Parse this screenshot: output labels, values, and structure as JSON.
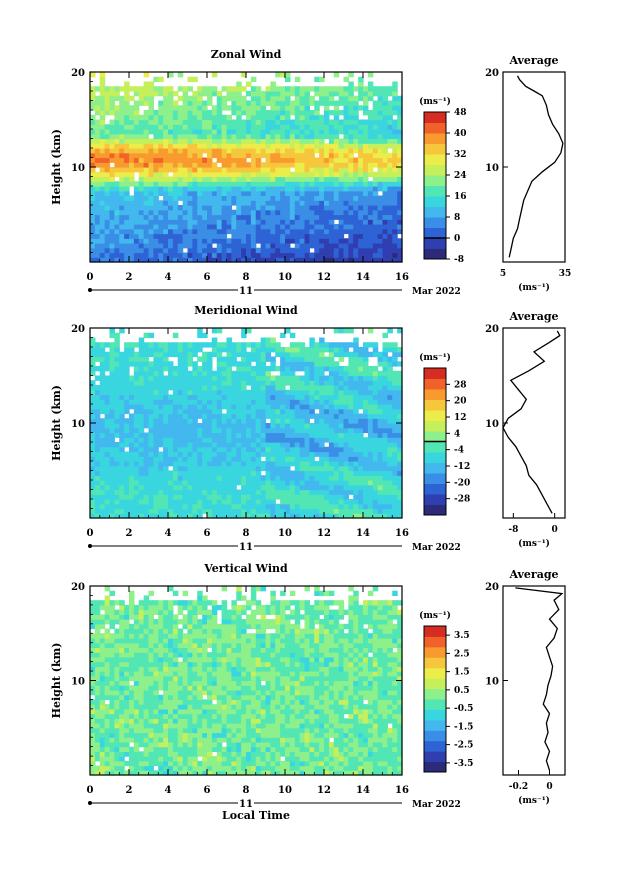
{
  "colormap": [
    "#2b2b7a",
    "#2f3fb0",
    "#2e63d6",
    "#3b8ee6",
    "#43b8ee",
    "#3ad6e0",
    "#52e6b4",
    "#8ef08a",
    "#c6ef5c",
    "#ecec4a",
    "#f6c63c",
    "#f89a2e",
    "#f0622a",
    "#d62c22"
  ],
  "chart_data": [
    {
      "id": "zonal",
      "type": "heatmap",
      "title": "Zonal Wind",
      "ylabel": "Height (km)",
      "xlim": [
        0,
        16
      ],
      "ylim": [
        0,
        20
      ],
      "x_ticks": [
        0,
        2,
        4,
        6,
        8,
        10,
        12,
        14,
        16
      ],
      "y_ticks": [
        10,
        20
      ],
      "date_label": "11",
      "month_label": "Mar 2022",
      "colorbar": {
        "unit": "(ms⁻¹)",
        "min": -8,
        "max": 48,
        "ticks": [
          48,
          40,
          32,
          24,
          16,
          8,
          0,
          -8
        ],
        "contour": 0
      },
      "profile_title": "Average",
      "profile_xlim": [
        5,
        35
      ],
      "profile_xticks": [
        5,
        35
      ],
      "profile_unit": "(ms⁻¹)",
      "profile": [
        [
          8,
          0.5
        ],
        [
          9,
          1.5
        ],
        [
          10,
          2.5
        ],
        [
          12,
          3.5
        ],
        [
          13,
          4.5
        ],
        [
          14,
          5.5
        ],
        [
          15,
          6.5
        ],
        [
          17,
          7.5
        ],
        [
          19,
          8.5
        ],
        [
          24,
          9.5
        ],
        [
          30,
          10.5
        ],
        [
          33,
          11.5
        ],
        [
          34,
          12.5
        ],
        [
          32,
          13.5
        ],
        [
          29,
          14.5
        ],
        [
          27,
          15.5
        ],
        [
          26,
          16.5
        ],
        [
          24,
          17.5
        ],
        [
          20,
          18
        ],
        [
          16,
          18.5
        ],
        [
          13,
          19.2
        ],
        [
          12,
          19.6
        ]
      ]
    },
    {
      "id": "meridional",
      "type": "heatmap",
      "title": "Meridional Wind",
      "ylabel": "Height (km)",
      "xlim": [
        0,
        16
      ],
      "ylim": [
        0,
        20
      ],
      "x_ticks": [
        0,
        2,
        4,
        6,
        8,
        10,
        12,
        14,
        16
      ],
      "y_ticks": [
        10,
        20
      ],
      "date_label": "11",
      "month_label": "Mar 2022",
      "colorbar": {
        "unit": "(ms⁻¹)",
        "min": -36,
        "max": 36,
        "ticks": [
          28,
          20,
          12,
          4,
          -4,
          -12,
          -20,
          -28
        ],
        "contour": 0
      },
      "profile_title": "Average",
      "profile_xlim": [
        -10,
        2
      ],
      "profile_xticks": [
        -8,
        0
      ],
      "profile_unit": "(ms⁻¹)",
      "profile": [
        [
          -0.5,
          0.5
        ],
        [
          -1.5,
          1.5
        ],
        [
          -2.5,
          2.5
        ],
        [
          -3.5,
          3.5
        ],
        [
          -5,
          4.5
        ],
        [
          -5.5,
          5.5
        ],
        [
          -6.5,
          6.5
        ],
        [
          -7.5,
          7.5
        ],
        [
          -9,
          8.5
        ],
        [
          -10,
          9.5
        ],
        [
          -9,
          10.5
        ],
        [
          -6.5,
          11.5
        ],
        [
          -5.5,
          12.5
        ],
        [
          -7,
          13.5
        ],
        [
          -8.5,
          14.5
        ],
        [
          -5,
          15.5
        ],
        [
          -2,
          16.5
        ],
        [
          -4,
          17.5
        ],
        [
          -1,
          18.5
        ],
        [
          1,
          19.2
        ],
        [
          0.5,
          19.7
        ]
      ]
    },
    {
      "id": "vertical",
      "type": "heatmap",
      "title": "Vertical Wind",
      "ylabel": "Height (km)",
      "xlabel": "Local Time",
      "xlim": [
        0,
        16
      ],
      "ylim": [
        0,
        20
      ],
      "x_ticks": [
        0,
        2,
        4,
        6,
        8,
        10,
        12,
        14,
        16
      ],
      "y_ticks": [
        10,
        20
      ],
      "date_label": "11",
      "month_label": "Mar 2022",
      "colorbar": {
        "unit": "(ms⁻¹)",
        "min": -4,
        "max": 4,
        "ticks": [
          3.5,
          2.5,
          1.5,
          0.5,
          -0.5,
          -1.5,
          -2.5,
          -3.5
        ]
      },
      "profile_title": "Average",
      "profile_xlim": [
        -0.3,
        0.1
      ],
      "profile_xticks": [
        -0.2,
        0.0
      ],
      "profile_unit": "(ms⁻¹)",
      "profile": [
        [
          0.0,
          0.5
        ],
        [
          -0.02,
          1.5
        ],
        [
          0.0,
          2.5
        ],
        [
          -0.03,
          3.5
        ],
        [
          -0.01,
          4.5
        ],
        [
          -0.02,
          5.5
        ],
        [
          0.0,
          6.5
        ],
        [
          -0.04,
          7.5
        ],
        [
          -0.02,
          8.5
        ],
        [
          -0.01,
          9.5
        ],
        [
          0.01,
          10.5
        ],
        [
          0.02,
          11.5
        ],
        [
          0.0,
          12.5
        ],
        [
          -0.02,
          13.5
        ],
        [
          0.03,
          14.5
        ],
        [
          0.05,
          15.5
        ],
        [
          0.0,
          16.5
        ],
        [
          0.06,
          17.5
        ],
        [
          0.03,
          18.5
        ],
        [
          0.08,
          19.2
        ],
        [
          -0.22,
          19.8
        ]
      ]
    }
  ]
}
